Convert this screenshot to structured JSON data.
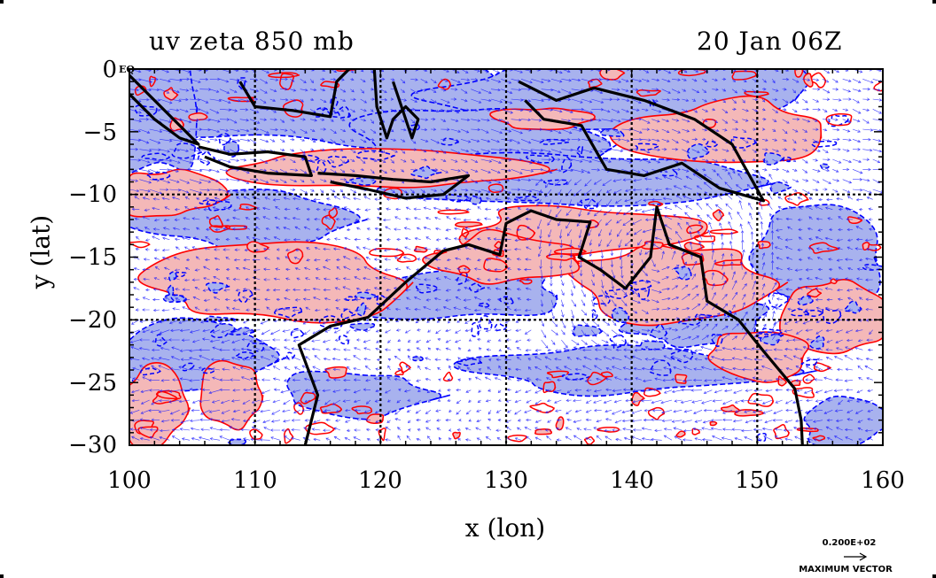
{
  "title_left": "uv zeta 850 mb",
  "title_right": "20 Jan 06Z",
  "equator_mark": "EQ",
  "x_axis": {
    "label": "x (lon)",
    "range": [
      100,
      160
    ],
    "ticks": [
      "100",
      "110",
      "120",
      "130",
      "140",
      "150",
      "160"
    ]
  },
  "y_axis": {
    "label": "y (lat)",
    "range": [
      0,
      -30
    ],
    "ticks": [
      "0",
      "−5",
      "−10",
      "−15",
      "−20",
      "−25",
      "−30"
    ]
  },
  "grid": {
    "lon": [
      110,
      120,
      130,
      140,
      150
    ],
    "lat": [
      -10,
      -20
    ],
    "style": "dashed-black"
  },
  "legend": {
    "max_vector_value": "0.200E+02",
    "max_vector_label": "MAXIMUM VECTOR"
  },
  "colors": {
    "positive_contour": "#ff0000",
    "positive_fill": "#f4b8b8",
    "negative_contour": "#0000ff",
    "negative_fill": "#a8b2ee",
    "coastline": "#000000",
    "vectors": "#1a1aff"
  }
}
